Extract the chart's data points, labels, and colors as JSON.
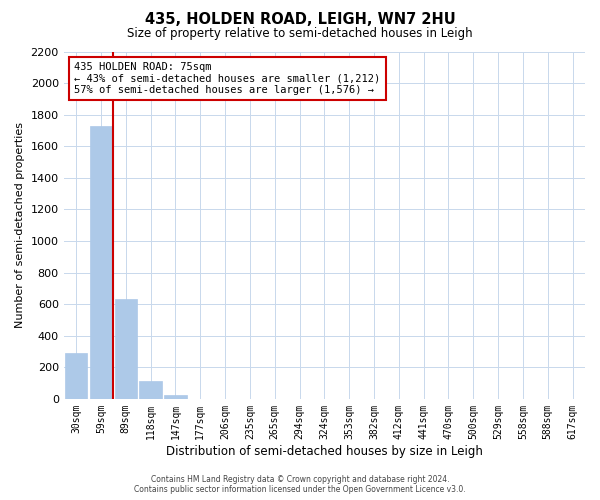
{
  "title": "435, HOLDEN ROAD, LEIGH, WN7 2HU",
  "subtitle": "Size of property relative to semi-detached houses in Leigh",
  "xlabel": "Distribution of semi-detached houses by size in Leigh",
  "ylabel": "Number of semi-detached properties",
  "bar_values": [
    290,
    1730,
    635,
    110,
    25,
    0,
    0,
    0,
    0,
    0,
    0,
    0,
    0,
    0,
    0,
    0,
    0,
    0,
    0,
    0,
    0
  ],
  "categories": [
    "30sqm",
    "59sqm",
    "89sqm",
    "118sqm",
    "147sqm",
    "177sqm",
    "206sqm",
    "235sqm",
    "265sqm",
    "294sqm",
    "324sqm",
    "353sqm",
    "382sqm",
    "412sqm",
    "441sqm",
    "470sqm",
    "500sqm",
    "529sqm",
    "558sqm",
    "588sqm",
    "617sqm"
  ],
  "bar_color": "#adc9e8",
  "bar_edge_color": "#adc9e8",
  "red_line_x": 1.5,
  "ylim": [
    0,
    2200
  ],
  "yticks": [
    0,
    200,
    400,
    600,
    800,
    1000,
    1200,
    1400,
    1600,
    1800,
    2000,
    2200
  ],
  "annotation_title": "435 HOLDEN ROAD: 75sqm",
  "annotation_line1": "← 43% of semi-detached houses are smaller (1,212)",
  "annotation_line2": "57% of semi-detached houses are larger (1,576) →",
  "annotation_box_facecolor": "#ffffff",
  "annotation_box_edgecolor": "#cc0000",
  "footer_line1": "Contains HM Land Registry data © Crown copyright and database right 2024.",
  "footer_line2": "Contains public sector information licensed under the Open Government Licence v3.0.",
  "background_color": "#ffffff",
  "grid_color": "#c8d8ec"
}
